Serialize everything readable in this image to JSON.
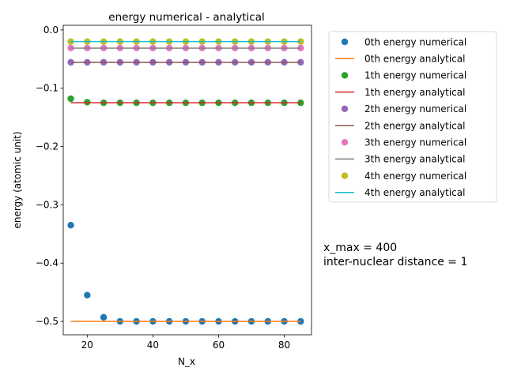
{
  "chart_data": {
    "type": "line",
    "title": "energy numerical - analytical",
    "xlabel": "N_x",
    "ylabel": "energy (atomic unit)",
    "xlim": [
      12.7,
      88.3
    ],
    "ylim": [
      -0.523,
      0.008
    ],
    "xticks": [
      20,
      40,
      60,
      80
    ],
    "xtick_labels": [
      "20",
      "40",
      "60",
      "80"
    ],
    "yticks": [
      0.0,
      -0.1,
      -0.2,
      -0.3,
      -0.4,
      -0.5
    ],
    "ytick_labels": [
      "0.0",
      "−0.1",
      "−0.2",
      "−0.3",
      "−0.4",
      "−0.5"
    ],
    "grid": false,
    "legend_position": "outside-right",
    "x": [
      15,
      20,
      25,
      30,
      35,
      40,
      45,
      50,
      55,
      60,
      65,
      70,
      75,
      80,
      85
    ],
    "series": [
      {
        "name": "0th energy numerical",
        "kind": "scatter",
        "color": "#1f77b4",
        "values": [
          -0.335,
          -0.455,
          -0.493,
          -0.5,
          -0.5,
          -0.5,
          -0.5,
          -0.5,
          -0.5,
          -0.5,
          -0.5,
          -0.5,
          -0.5,
          -0.5,
          -0.5
        ]
      },
      {
        "name": "0th energy analytical",
        "kind": "line",
        "color": "#ff7f0e",
        "values": [
          -0.5,
          -0.5,
          -0.5,
          -0.5,
          -0.5,
          -0.5,
          -0.5,
          -0.5,
          -0.5,
          -0.5,
          -0.5,
          -0.5,
          -0.5,
          -0.5,
          -0.5
        ]
      },
      {
        "name": "1th energy numerical",
        "kind": "scatter",
        "color": "#2ca02c",
        "values": [
          -0.118,
          -0.124,
          -0.125,
          -0.125,
          -0.125,
          -0.125,
          -0.125,
          -0.125,
          -0.125,
          -0.125,
          -0.125,
          -0.125,
          -0.125,
          -0.125,
          -0.125
        ]
      },
      {
        "name": "1th energy analytical",
        "kind": "line",
        "color": "#d62728",
        "values": [
          -0.125,
          -0.125,
          -0.125,
          -0.125,
          -0.125,
          -0.125,
          -0.125,
          -0.125,
          -0.125,
          -0.125,
          -0.125,
          -0.125,
          -0.125,
          -0.125,
          -0.125
        ]
      },
      {
        "name": "2th energy numerical",
        "kind": "scatter",
        "color": "#9467bd",
        "values": [
          -0.0555,
          -0.0555,
          -0.0555,
          -0.0555,
          -0.0555,
          -0.0555,
          -0.0555,
          -0.0555,
          -0.0555,
          -0.0555,
          -0.0555,
          -0.0555,
          -0.0555,
          -0.0555,
          -0.0555
        ]
      },
      {
        "name": "2th energy analytical",
        "kind": "line",
        "color": "#8c564b",
        "values": [
          -0.0556,
          -0.0556,
          -0.0556,
          -0.0556,
          -0.0556,
          -0.0556,
          -0.0556,
          -0.0556,
          -0.0556,
          -0.0556,
          -0.0556,
          -0.0556,
          -0.0556,
          -0.0556,
          -0.0556
        ]
      },
      {
        "name": "3th energy numerical",
        "kind": "scatter",
        "color": "#e377c2",
        "values": [
          -0.031,
          -0.031,
          -0.031,
          -0.031,
          -0.031,
          -0.031,
          -0.031,
          -0.031,
          -0.031,
          -0.031,
          -0.031,
          -0.031,
          -0.031,
          -0.031,
          -0.031
        ]
      },
      {
        "name": "3th energy analytical",
        "kind": "line",
        "color": "#7f7f7f",
        "values": [
          -0.03125,
          -0.03125,
          -0.03125,
          -0.03125,
          -0.03125,
          -0.03125,
          -0.03125,
          -0.03125,
          -0.03125,
          -0.03125,
          -0.03125,
          -0.03125,
          -0.03125,
          -0.03125,
          -0.03125
        ]
      },
      {
        "name": "4th energy numerical",
        "kind": "scatter",
        "color": "#bcbd22",
        "values": [
          -0.02,
          -0.02,
          -0.02,
          -0.02,
          -0.02,
          -0.02,
          -0.02,
          -0.02,
          -0.02,
          -0.02,
          -0.02,
          -0.02,
          -0.02,
          -0.02,
          -0.02
        ]
      },
      {
        "name": "4th energy analytical",
        "kind": "line",
        "color": "#17becf",
        "values": [
          -0.02,
          -0.02,
          -0.02,
          -0.02,
          -0.02,
          -0.02,
          -0.02,
          -0.02,
          -0.02,
          -0.02,
          -0.02,
          -0.02,
          -0.02,
          -0.02,
          -0.02
        ]
      }
    ],
    "annotations": [
      "x_max = 400",
      "inter-nuclear distance = 1"
    ]
  }
}
